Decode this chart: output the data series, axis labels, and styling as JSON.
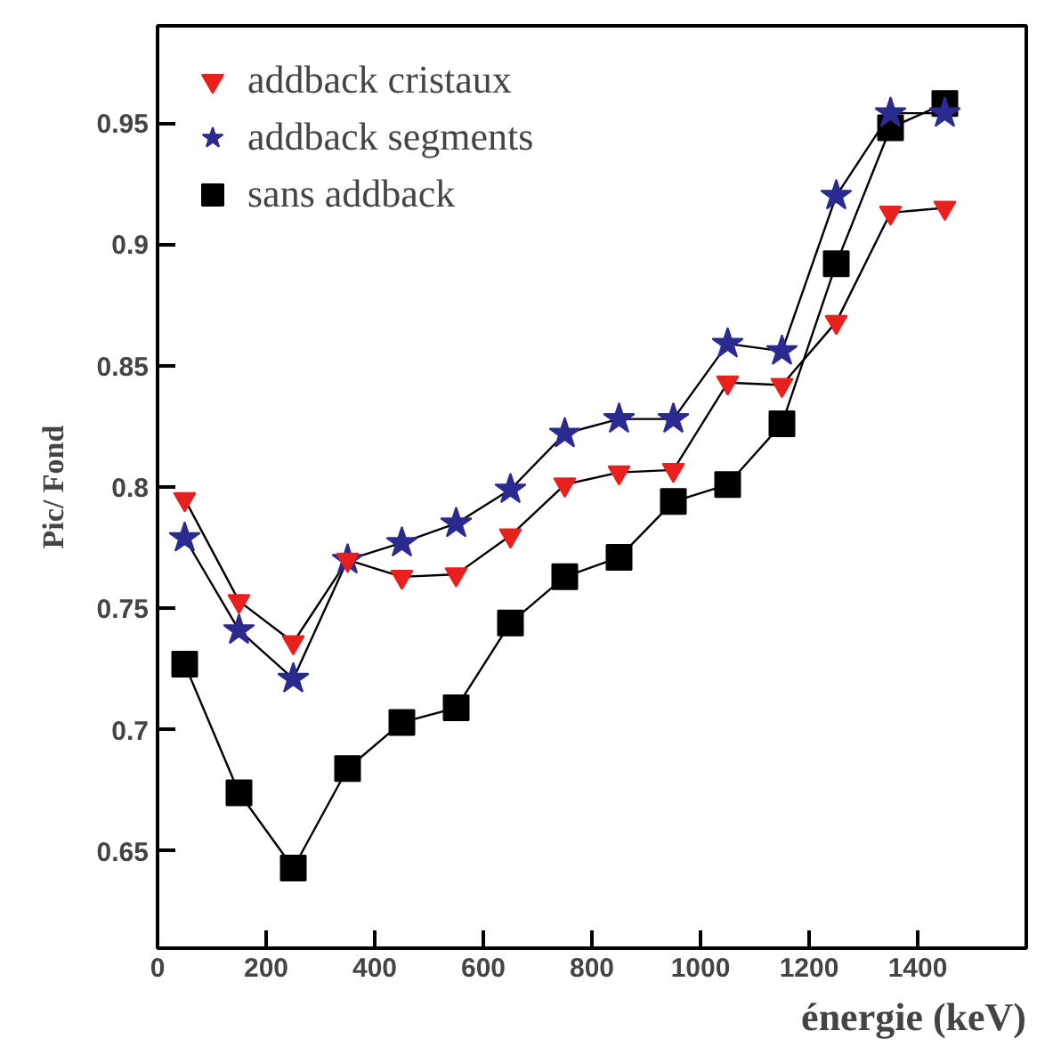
{
  "chart_data": {
    "type": "line",
    "xlabel": "énergie (keV)",
    "ylabel": "Pic/ Fond",
    "x": [
      50,
      150,
      250,
      350,
      450,
      550,
      650,
      750,
      850,
      950,
      1050,
      1150,
      1250,
      1350,
      1450
    ],
    "series": [
      {
        "name": "addback cristaux",
        "color": "#e8201e",
        "marker": "triangle",
        "values": [
          0.795,
          0.753,
          0.736,
          0.77,
          0.763,
          0.764,
          0.78,
          0.801,
          0.806,
          0.807,
          0.843,
          0.842,
          0.868,
          0.913,
          0.915
        ]
      },
      {
        "name": "addback segments",
        "color": "#2a2a90",
        "marker": "star",
        "values": [
          0.779,
          0.741,
          0.721,
          0.77,
          0.777,
          0.785,
          0.799,
          0.822,
          0.828,
          0.828,
          0.859,
          0.856,
          0.92,
          0.954,
          0.954
        ]
      },
      {
        "name": "sans addback",
        "color": "#000000",
        "marker": "square",
        "values": [
          0.727,
          0.674,
          0.643,
          0.684,
          0.703,
          0.709,
          0.744,
          0.763,
          0.771,
          0.794,
          0.801,
          0.826,
          0.892,
          0.948,
          0.958
        ]
      }
    ],
    "xlim": [
      0,
      1600
    ],
    "ylim": [
      0.61,
      0.99
    ],
    "xticks": [
      0,
      200,
      400,
      600,
      800,
      1000,
      1200,
      1400
    ],
    "yticks": [
      {
        "value": 0.65,
        "label": "0.65"
      },
      {
        "value": 0.7,
        "label": "0.7"
      },
      {
        "value": 0.75,
        "label": "0.75"
      },
      {
        "value": 0.8,
        "label": "0.8"
      },
      {
        "value": 0.85,
        "label": "0.85"
      },
      {
        "value": 0.9,
        "label": "0.9"
      },
      {
        "value": 0.95,
        "label": "0.95"
      }
    ],
    "grid": false,
    "legend": "top left",
    "line_style": "solid"
  }
}
